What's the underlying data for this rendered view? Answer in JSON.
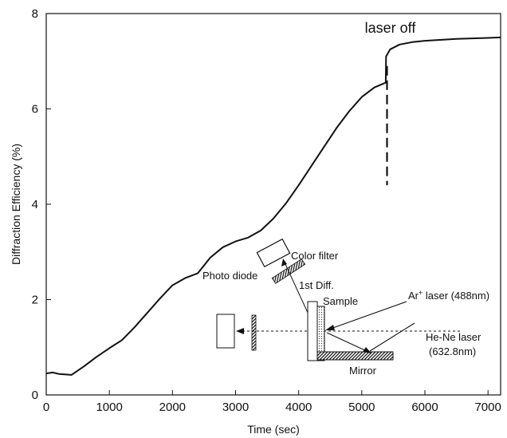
{
  "chart_data": {
    "type": "line",
    "title": "",
    "xlabel": "Time (sec)",
    "ylabel": "Diffraction Efficiency (%)",
    "xlim": [
      0,
      7200
    ],
    "ylim": [
      0,
      8
    ],
    "x_ticks": [
      0,
      1000,
      2000,
      3000,
      4000,
      5000,
      6000,
      7000
    ],
    "y_ticks": [
      0,
      2,
      4,
      6,
      8
    ],
    "grid": false,
    "series": [
      {
        "name": "",
        "x": [
          0,
          100,
          200,
          400,
          600,
          800,
          1000,
          1200,
          1400,
          1600,
          1800,
          2000,
          2200,
          2400,
          2600,
          2800,
          3000,
          3200,
          3400,
          3600,
          3800,
          4000,
          4200,
          4400,
          4600,
          4800,
          5000,
          5200,
          5380,
          5385,
          5450,
          5600,
          5800,
          6000,
          6500,
          7000,
          7200
        ],
        "y": [
          0.45,
          0.47,
          0.44,
          0.42,
          0.6,
          0.8,
          0.98,
          1.15,
          1.42,
          1.72,
          2.02,
          2.3,
          2.45,
          2.55,
          2.88,
          3.1,
          3.22,
          3.3,
          3.45,
          3.7,
          4.02,
          4.4,
          4.8,
          5.2,
          5.6,
          5.95,
          6.25,
          6.45,
          6.55,
          7.1,
          7.25,
          7.35,
          7.4,
          7.43,
          7.47,
          7.49,
          7.5
        ]
      }
    ],
    "annotations": [
      {
        "text": "laser off",
        "x": 5400,
        "y": 7.6
      }
    ],
    "marker_line": {
      "x": 5400,
      "y_from": 4.4,
      "y_to": 6.9,
      "style": "dashed"
    },
    "inset_labels": {
      "color_filter": "Color filter",
      "photo_diode": "Photo diode",
      "first_diff": "1st Diff.",
      "sample": "Sample",
      "ar_laser_prefix": "Ar",
      "ar_laser_sup": "+",
      "ar_laser_suffix": " laser (488nm)",
      "he_ne_laser_line1": "He-Ne laser",
      "he_ne_laser_line2": "(632.8nm)",
      "mirror": "Mirror"
    },
    "colors": {
      "line": "#111111",
      "axis": "#111111",
      "background": "#ffffff"
    }
  }
}
